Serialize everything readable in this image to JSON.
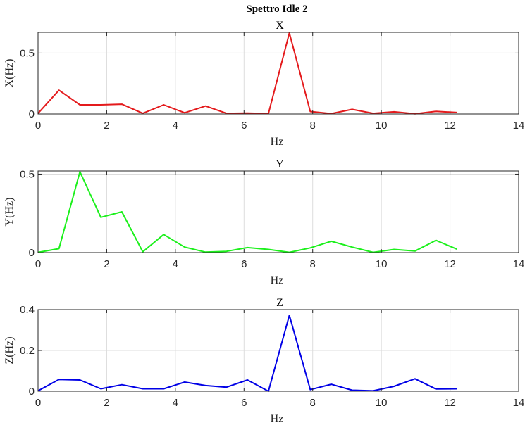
{
  "figure_title": "Spettro Idle 2",
  "chart_data": [
    {
      "type": "line",
      "title": "X",
      "xlabel": "Hz",
      "ylabel": "X(Hz)",
      "xlim": [
        0,
        14
      ],
      "ylim": [
        0,
        0.67
      ],
      "xticks": [
        0,
        2,
        4,
        6,
        8,
        10,
        12,
        14
      ],
      "xtick_labels": [
        "0",
        "2",
        "4",
        "6",
        "8",
        "10",
        "12",
        "14"
      ],
      "yticks": [
        0,
        0.5
      ],
      "ytick_labels": [
        "0",
        "0.5"
      ],
      "grid": true,
      "color": "#e41a1c",
      "x": [
        0,
        0.61,
        1.22,
        1.83,
        2.44,
        3.05,
        3.66,
        4.27,
        4.88,
        5.49,
        6.1,
        6.71,
        7.32,
        7.93,
        8.54,
        9.15,
        9.76,
        10.37,
        10.98,
        11.59,
        12.2
      ],
      "y": [
        0.005,
        0.195,
        0.075,
        0.075,
        0.08,
        0.005,
        0.075,
        0.01,
        0.065,
        0.005,
        0.007,
        0.003,
        0.665,
        0.02,
        0.003,
        0.038,
        0.005,
        0.018,
        0.002,
        0.022,
        0.012
      ]
    },
    {
      "type": "line",
      "title": "Y",
      "xlabel": "Hz",
      "ylabel": "Y(Hz)",
      "xlim": [
        0,
        14
      ],
      "ylim": [
        0,
        0.52
      ],
      "xticks": [
        0,
        2,
        4,
        6,
        8,
        10,
        12,
        14
      ],
      "xtick_labels": [
        "0",
        "2",
        "4",
        "6",
        "8",
        "10",
        "12",
        "14"
      ],
      "yticks": [
        0,
        0.5
      ],
      "ytick_labels": [
        "0",
        "0.5"
      ],
      "grid": true,
      "color": "#1cf01c",
      "x": [
        0,
        0.61,
        1.22,
        1.83,
        2.44,
        3.05,
        3.66,
        4.27,
        4.88,
        5.49,
        6.1,
        6.71,
        7.32,
        7.93,
        8.54,
        9.15,
        9.76,
        10.37,
        10.98,
        11.59,
        12.2
      ],
      "y": [
        0.002,
        0.025,
        0.515,
        0.225,
        0.26,
        0.005,
        0.115,
        0.035,
        0.003,
        0.008,
        0.032,
        0.02,
        0.002,
        0.03,
        0.072,
        0.035,
        0.002,
        0.02,
        0.01,
        0.078,
        0.022
      ]
    },
    {
      "type": "line",
      "title": "Z",
      "xlabel": "Hz",
      "ylabel": "Z(Hz)",
      "xlim": [
        0,
        14
      ],
      "ylim": [
        0,
        0.4
      ],
      "xticks": [
        0,
        2,
        4,
        6,
        8,
        10,
        12,
        14
      ],
      "xtick_labels": [
        "0",
        "2",
        "4",
        "6",
        "8",
        "10",
        "12",
        "14"
      ],
      "yticks": [
        0,
        0.2,
        0.4
      ],
      "ytick_labels": [
        "0",
        "0.2",
        "0.4"
      ],
      "grid": true,
      "color": "#0000e6",
      "x": [
        0,
        0.61,
        1.22,
        1.83,
        2.44,
        3.05,
        3.66,
        4.27,
        4.88,
        5.49,
        6.1,
        6.71,
        7.32,
        7.93,
        8.54,
        9.15,
        9.76,
        10.37,
        10.98,
        11.59,
        12.2
      ],
      "y": [
        0.002,
        0.058,
        0.055,
        0.012,
        0.032,
        0.012,
        0.012,
        0.045,
        0.028,
        0.02,
        0.055,
        0.0,
        0.372,
        0.008,
        0.034,
        0.005,
        0.002,
        0.024,
        0.061,
        0.011,
        0.012
      ]
    }
  ]
}
